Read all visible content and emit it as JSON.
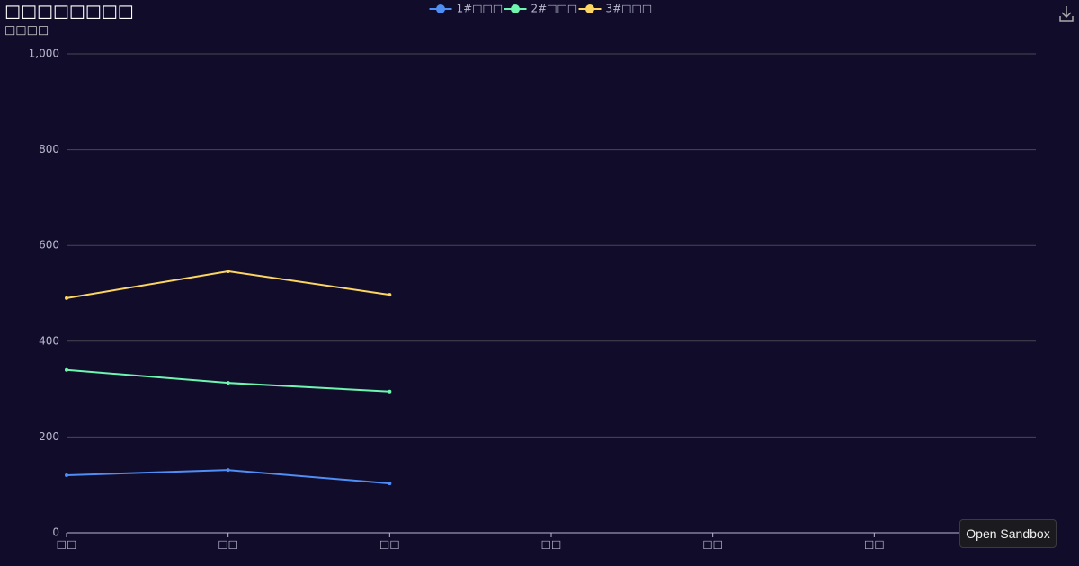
{
  "chart_data": {
    "type": "line",
    "title": "□□□□□□□□",
    "subtitle": "□□□□",
    "categories": [
      "□□",
      "□□",
      "□□",
      "□□",
      "□□",
      "□□",
      null
    ],
    "series": [
      {
        "name": "1#□□□",
        "color": "#4f8ef5",
        "values": [
          120,
          131,
          103,
          null,
          null,
          null,
          null
        ]
      },
      {
        "name": "2#□□□",
        "color": "#6ef5b0",
        "values": [
          340,
          313,
          295,
          null,
          null,
          null,
          null
        ]
      },
      {
        "name": "3#□□□",
        "color": "#fcd661",
        "values": [
          490,
          546,
          497,
          null,
          null,
          null,
          null
        ]
      }
    ],
    "ylim": [
      0,
      1000
    ],
    "yticks": [
      0,
      200,
      400,
      600,
      800,
      {
        "value": 1000,
        "label": "1,000"
      }
    ],
    "grid": true,
    "legend": "top"
  },
  "ui": {
    "button": "Open Sandbox"
  }
}
